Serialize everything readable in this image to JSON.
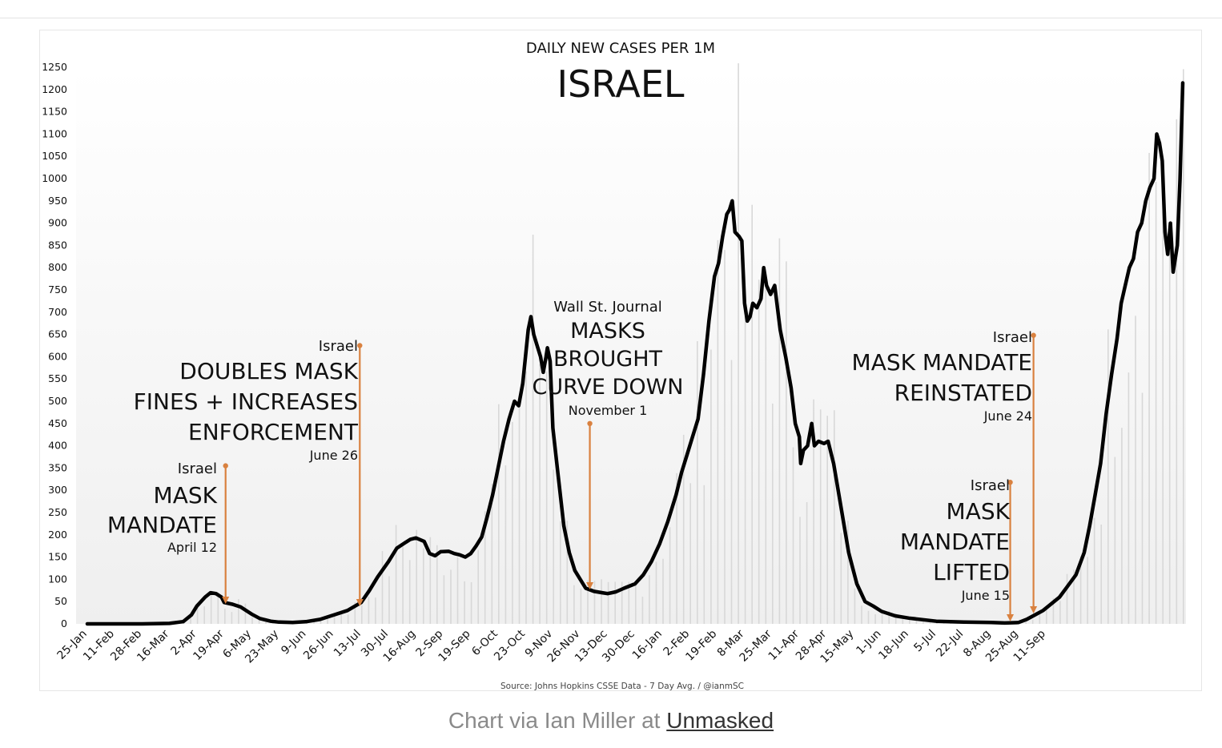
{
  "colors": {
    "line": "#000000",
    "annotation": "#d9813f",
    "bars": "#d8d8d8",
    "caption": "#8a8a8a"
  },
  "chart_data": {
    "type": "line",
    "subtitle": "DAILY NEW CASES PER 1M",
    "title": "ISRAEL",
    "source": "Source: Johns Hopkins CSSE Data - 7 Day Avg. / @ianmSC",
    "ylim": [
      0,
      1250
    ],
    "yticks": [
      0,
      50,
      100,
      150,
      200,
      250,
      300,
      350,
      400,
      450,
      500,
      550,
      600,
      650,
      700,
      750,
      800,
      850,
      900,
      950,
      1000,
      1050,
      1100,
      1150,
      1200,
      1250
    ],
    "xticks": [
      "25-Jan",
      "11-Feb",
      "28-Feb",
      "16-Mar",
      "2-Apr",
      "19-Apr",
      "6-May",
      "23-May",
      "9-Jun",
      "26-Jun",
      "13-Jul",
      "30-Jul",
      "16-Aug",
      "2-Sep",
      "19-Sep",
      "6-Oct",
      "23-Oct",
      "9-Nov",
      "26-Nov",
      "13-Dec",
      "30-Dec",
      "16-Jan",
      "2-Feb",
      "19-Feb",
      "8-Mar",
      "25-Mar",
      "11-Apr",
      "28-Apr",
      "15-May",
      "1-Jun",
      "18-Jun",
      "5-Jul",
      "22-Jul",
      "8-Aug",
      "25-Aug",
      "11-Sep"
    ],
    "series": [
      {
        "name": "7 Day Avg.",
        "points": [
          [
            0,
            0
          ],
          [
            1,
            0
          ],
          [
            2,
            0
          ],
          [
            3,
            1
          ],
          [
            3.5,
            5
          ],
          [
            3.8,
            20
          ],
          [
            4,
            40
          ],
          [
            4.3,
            60
          ],
          [
            4.5,
            70
          ],
          [
            4.7,
            68
          ],
          [
            4.9,
            60
          ],
          [
            5,
            48
          ],
          [
            5.3,
            44
          ],
          [
            5.6,
            38
          ],
          [
            6,
            22
          ],
          [
            6.3,
            12
          ],
          [
            6.7,
            6
          ],
          [
            7,
            4
          ],
          [
            7.5,
            3
          ],
          [
            8,
            5
          ],
          [
            8.5,
            10
          ],
          [
            9,
            20
          ],
          [
            9.5,
            30
          ],
          [
            10,
            48
          ],
          [
            10.3,
            75
          ],
          [
            10.6,
            105
          ],
          [
            11,
            140
          ],
          [
            11.3,
            170
          ],
          [
            11.6,
            182
          ],
          [
            11.8,
            190
          ],
          [
            12,
            193
          ],
          [
            12.3,
            185
          ],
          [
            12.5,
            158
          ],
          [
            12.7,
            153
          ],
          [
            12.9,
            162
          ],
          [
            13.2,
            163
          ],
          [
            13.4,
            158
          ],
          [
            13.6,
            155
          ],
          [
            13.8,
            150
          ],
          [
            14,
            158
          ],
          [
            14.2,
            175
          ],
          [
            14.4,
            195
          ],
          [
            14.6,
            240
          ],
          [
            14.8,
            290
          ],
          [
            15,
            350
          ],
          [
            15.2,
            410
          ],
          [
            15.4,
            460
          ],
          [
            15.6,
            500
          ],
          [
            15.75,
            490
          ],
          [
            15.9,
            540
          ],
          [
            16,
            600
          ],
          [
            16.1,
            660
          ],
          [
            16.2,
            690
          ],
          [
            16.3,
            650
          ],
          [
            16.45,
            620
          ],
          [
            16.55,
            600
          ],
          [
            16.65,
            565
          ],
          [
            16.75,
            600
          ],
          [
            16.8,
            620
          ],
          [
            16.9,
            590
          ],
          [
            17,
            440
          ],
          [
            17.2,
            330
          ],
          [
            17.4,
            220
          ],
          [
            17.6,
            160
          ],
          [
            17.8,
            120
          ],
          [
            18,
            100
          ],
          [
            18.2,
            80
          ],
          [
            18.5,
            73
          ],
          [
            18.8,
            70
          ],
          [
            19,
            68
          ],
          [
            19.3,
            72
          ],
          [
            19.6,
            80
          ],
          [
            20,
            90
          ],
          [
            20.3,
            110
          ],
          [
            20.6,
            140
          ],
          [
            20.9,
            180
          ],
          [
            21.2,
            230
          ],
          [
            21.5,
            290
          ],
          [
            21.7,
            340
          ],
          [
            21.9,
            380
          ],
          [
            22.1,
            420
          ],
          [
            22.3,
            460
          ],
          [
            22.5,
            560
          ],
          [
            22.7,
            680
          ],
          [
            22.9,
            780
          ],
          [
            23.05,
            810
          ],
          [
            23.2,
            870
          ],
          [
            23.35,
            920
          ],
          [
            23.45,
            930
          ],
          [
            23.55,
            950
          ],
          [
            23.65,
            880
          ],
          [
            23.8,
            870
          ],
          [
            23.9,
            860
          ],
          [
            24,
            720
          ],
          [
            24.1,
            680
          ],
          [
            24.2,
            690
          ],
          [
            24.3,
            720
          ],
          [
            24.45,
            710
          ],
          [
            24.6,
            730
          ],
          [
            24.7,
            800
          ],
          [
            24.8,
            760
          ],
          [
            24.95,
            740
          ],
          [
            25.1,
            760
          ],
          [
            25.3,
            660
          ],
          [
            25.5,
            600
          ],
          [
            25.7,
            530
          ],
          [
            25.85,
            450
          ],
          [
            26,
            420
          ],
          [
            26.05,
            360
          ],
          [
            26.15,
            390
          ],
          [
            26.3,
            400
          ],
          [
            26.45,
            450
          ],
          [
            26.55,
            400
          ],
          [
            26.7,
            410
          ],
          [
            26.9,
            405
          ],
          [
            27.05,
            410
          ],
          [
            27.25,
            360
          ],
          [
            27.5,
            270
          ],
          [
            27.8,
            160
          ],
          [
            28.1,
            90
          ],
          [
            28.4,
            50
          ],
          [
            28.7,
            40
          ],
          [
            29,
            28
          ],
          [
            29.5,
            18
          ],
          [
            30,
            13
          ],
          [
            31,
            6
          ],
          [
            32,
            4
          ],
          [
            33,
            3
          ],
          [
            33.5,
            2
          ],
          [
            34,
            3
          ],
          [
            34.3,
            10
          ],
          [
            34.6,
            20
          ],
          [
            34.9,
            30
          ],
          [
            35.2,
            45
          ],
          [
            35.5,
            60
          ],
          [
            35.8,
            85
          ],
          [
            36.1,
            110
          ],
          [
            36.4,
            160
          ],
          [
            36.6,
            220
          ],
          [
            36.8,
            290
          ],
          [
            37,
            360
          ],
          [
            37.2,
            470
          ],
          [
            37.4,
            560
          ],
          [
            37.6,
            640
          ],
          [
            37.75,
            720
          ],
          [
            37.9,
            760
          ],
          [
            38.05,
            800
          ],
          [
            38.2,
            820
          ],
          [
            38.35,
            880
          ],
          [
            38.5,
            900
          ],
          [
            38.65,
            950
          ],
          [
            38.8,
            980
          ],
          [
            38.95,
            1000
          ],
          [
            39.05,
            1100
          ],
          [
            39.15,
            1080
          ],
          [
            39.25,
            1040
          ],
          [
            39.35,
            880
          ],
          [
            39.45,
            830
          ],
          [
            39.55,
            900
          ],
          [
            39.65,
            790
          ],
          [
            39.8,
            850
          ],
          [
            39.9,
            1000
          ],
          [
            40,
            1215
          ]
        ]
      }
    ],
    "annotations": [
      {
        "id": "mask-mandate",
        "source": "Israel",
        "lines": [
          "MASK",
          "MANDATE"
        ],
        "date": "April 12",
        "x_index": 5.05,
        "y_top": 355
      },
      {
        "id": "doubles-fines",
        "source": "Israel",
        "lines": [
          "DOUBLES MASK",
          "FINES + INCREASES",
          "ENFORCEMENT"
        ],
        "date": "June 26",
        "x_index": 9.95,
        "y_top": 625
      },
      {
        "id": "wsj",
        "source": "Wall St. Journal",
        "lines": [
          "MASKS",
          "BROUGHT",
          "CURVE DOWN"
        ],
        "date": "November 1",
        "x_index": 18.35,
        "y_top": 450
      },
      {
        "id": "mask-lifted",
        "source": "Israel",
        "lines": [
          "MASK",
          "MANDATE",
          "LIFTED"
        ],
        "date": "June 15",
        "x_index": 33.7,
        "y_top": 318
      },
      {
        "id": "mask-reinstated",
        "source": "Israel",
        "lines": [
          "MASK MANDATE",
          "REINSTATED"
        ],
        "date": "June 24",
        "x_index": 34.55,
        "y_top": 648
      }
    ]
  },
  "caption": {
    "prefix": "Chart via Ian Miller at",
    "link": "Unmasked"
  }
}
